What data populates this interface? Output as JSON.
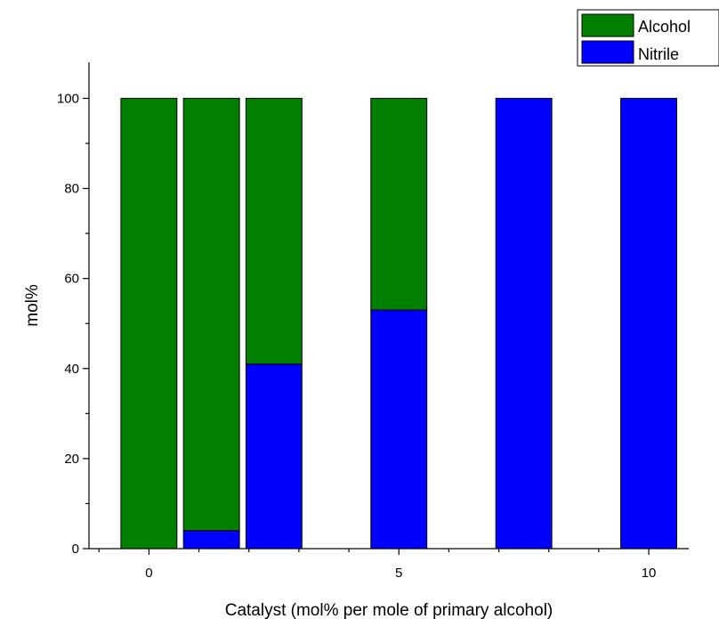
{
  "chart_data": {
    "type": "bar",
    "stacked": true,
    "x": [
      0,
      1.25,
      2.5,
      5,
      7.5,
      10
    ],
    "series": [
      {
        "name": "Nitrile",
        "values": [
          0,
          4,
          41,
          53,
          100,
          100
        ],
        "color": "#0000ff"
      },
      {
        "name": "Alcohol",
        "values": [
          100,
          96,
          59,
          47,
          0,
          0
        ],
        "color": "#007f00"
      }
    ],
    "xlabel": "Catalyst (mol% per mole of primary alcohol)",
    "ylabel": "mol%",
    "xlim": [
      -1.2,
      10.8
    ],
    "ylim": [
      0,
      108
    ],
    "xticks": [
      0,
      5,
      10
    ],
    "yticks": [
      0,
      20,
      40,
      60,
      80,
      100
    ],
    "grid": false,
    "legend": {
      "position": "top-right",
      "entries": [
        "Alcohol",
        "Nitrile"
      ]
    }
  }
}
